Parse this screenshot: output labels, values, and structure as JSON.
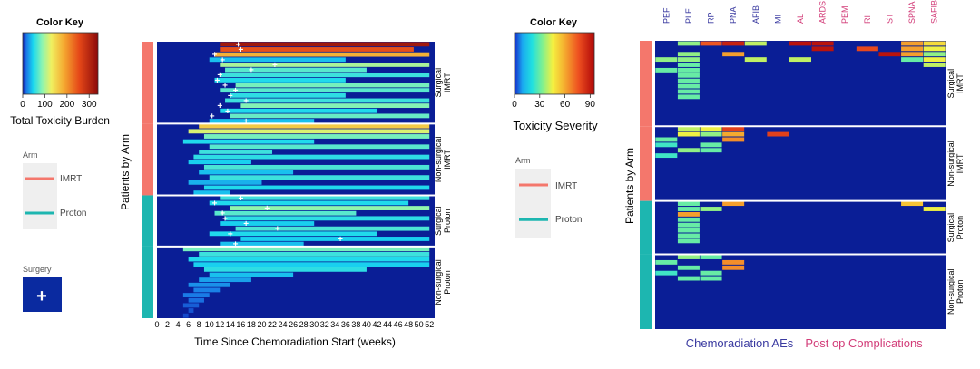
{
  "colors": {
    "imrt": "#f4776c",
    "proton": "#1db6b0",
    "navy": "#0a1e96",
    "surgery_box": "#0a2aa0",
    "aes_label": "#3a3aa0",
    "postop_label": "#d23c78",
    "legend_bg": "#efefef"
  },
  "left_panel": {
    "color_key": {
      "title": "Color Key",
      "label": "Total Toxicity Burden",
      "ticks": [
        "0",
        "100",
        "200",
        "300"
      ],
      "tick_values": [
        0,
        100,
        200,
        300
      ],
      "range": [
        0,
        340
      ]
    },
    "arm_legend": {
      "title": "Arm",
      "items": [
        "IMRT",
        "Proton"
      ]
    },
    "surgery_legend": {
      "title": "Surgery",
      "symbol": "+"
    },
    "y_axis_label": "Patients by Arm",
    "x_axis_label": "Time Since Chemoradiation Start (weeks)"
  },
  "right_panel": {
    "color_key": {
      "title": "Color Key",
      "label": "Toxicity Severity",
      "ticks": [
        "0",
        "30",
        "60",
        "90"
      ],
      "tick_values": [
        0,
        30,
        60,
        90
      ],
      "range": [
        0,
        95
      ]
    },
    "arm_legend": {
      "title": "Arm",
      "items": [
        "IMRT",
        "Proton"
      ]
    },
    "y_axis_label": "Patients by Arm",
    "aes_group_label": "Chemoradiation AEs",
    "postop_group_label": "Post op Complications"
  },
  "chart_data": [
    {
      "type": "heatmap",
      "title": "",
      "xlabel": "Time Since Chemoradiation Start (weeks)",
      "ylabel": "Patients by Arm",
      "x_ticks": [
        0,
        2,
        4,
        6,
        8,
        10,
        12,
        14,
        16,
        18,
        20,
        22,
        24,
        26,
        28,
        30,
        32,
        34,
        36,
        38,
        40,
        42,
        44,
        46,
        48,
        50,
        52
      ],
      "xlim": [
        0,
        53
      ],
      "value_label": "Total Toxicity Burden",
      "groups": [
        {
          "label": "Surgical IMRT",
          "line1": "Surgical",
          "line2": "IMRT",
          "arm": "IMRT",
          "size": 16,
          "rows": [
            {
              "start": 12,
              "end": 52,
              "v": 320
            },
            {
              "start": 12,
              "end": 49,
              "v": 250
            },
            {
              "start": 11,
              "end": 52,
              "v": 180
            },
            {
              "start": 10,
              "end": 36,
              "v": 40
            },
            {
              "start": 12,
              "end": 52,
              "v": 100
            },
            {
              "start": 13,
              "end": 40,
              "v": 70
            },
            {
              "start": 12,
              "end": 52,
              "v": 60
            },
            {
              "start": 11,
              "end": 36,
              "v": 50
            },
            {
              "start": 15,
              "end": 52,
              "v": 80
            },
            {
              "start": 12,
              "end": 52,
              "v": 70
            },
            {
              "start": 14,
              "end": 36,
              "v": 55
            },
            {
              "start": 13,
              "end": 52,
              "v": 60
            },
            {
              "start": 16,
              "end": 52,
              "v": 85
            },
            {
              "start": 12,
              "end": 42,
              "v": 50
            },
            {
              "start": 14,
              "end": 52,
              "v": 75
            },
            {
              "start": 10,
              "end": 30,
              "v": 40
            }
          ],
          "surgery": [
            {
              "row": 0,
              "week": 15.5
            },
            {
              "row": 1,
              "week": 16
            },
            {
              "row": 2,
              "week": 11
            },
            {
              "row": 3,
              "week": 12.5
            },
            {
              "row": 4,
              "week": 22.5
            },
            {
              "row": 5,
              "week": 18
            },
            {
              "row": 6,
              "week": 12
            },
            {
              "row": 7,
              "week": 11.5
            },
            {
              "row": 8,
              "week": 13
            },
            {
              "row": 9,
              "week": 15
            },
            {
              "row": 10,
              "week": 14
            },
            {
              "row": 11,
              "week": 17
            },
            {
              "row": 12,
              "week": 12
            },
            {
              "row": 13,
              "week": 13.5
            },
            {
              "row": 14,
              "week": 10.5
            },
            {
              "row": 15,
              "week": 17
            }
          ]
        },
        {
          "label": "Non-surgical IMRT",
          "line1": "Non-surgical",
          "line2": "IMRT",
          "arm": "IMRT",
          "size": 14,
          "rows": [
            {
              "start": 8,
              "end": 52,
              "v": 160
            },
            {
              "start": 6,
              "end": 52,
              "v": 120
            },
            {
              "start": 9,
              "end": 52,
              "v": 80
            },
            {
              "start": 5,
              "end": 30,
              "v": 50
            },
            {
              "start": 10,
              "end": 52,
              "v": 70
            },
            {
              "start": 8,
              "end": 22,
              "v": 60
            },
            {
              "start": 7,
              "end": 52,
              "v": 55
            },
            {
              "start": 6,
              "end": 18,
              "v": 45
            },
            {
              "start": 9,
              "end": 52,
              "v": 65
            },
            {
              "start": 8,
              "end": 26,
              "v": 40
            },
            {
              "start": 10,
              "end": 52,
              "v": 60
            },
            {
              "start": 6,
              "end": 20,
              "v": 35
            },
            {
              "start": 9,
              "end": 52,
              "v": 50
            },
            {
              "start": 7,
              "end": 14,
              "v": 40
            }
          ],
          "surgery": []
        },
        {
          "label": "Surgical Proton",
          "line1": "Surgical",
          "line2": "Proton",
          "arm": "Proton",
          "size": 10,
          "rows": [
            {
              "start": 12,
              "end": 52,
              "v": 60
            },
            {
              "start": 10,
              "end": 48,
              "v": 50
            },
            {
              "start": 14,
              "end": 52,
              "v": 90
            },
            {
              "start": 11,
              "end": 38,
              "v": 70
            },
            {
              "start": 13,
              "end": 52,
              "v": 55
            },
            {
              "start": 12,
              "end": 30,
              "v": 45
            },
            {
              "start": 15,
              "end": 52,
              "v": 65
            },
            {
              "start": 10,
              "end": 42,
              "v": 50
            },
            {
              "start": 16,
              "end": 52,
              "v": 45
            },
            {
              "start": 12,
              "end": 28,
              "v": 40
            }
          ],
          "surgery": [
            {
              "row": 0,
              "week": 16
            },
            {
              "row": 1,
              "week": 11
            },
            {
              "row": 2,
              "week": 21
            },
            {
              "row": 3,
              "week": 12.5
            },
            {
              "row": 4,
              "week": 13
            },
            {
              "row": 5,
              "week": 17
            },
            {
              "row": 6,
              "week": 23
            },
            {
              "row": 7,
              "week": 14
            },
            {
              "row": 8,
              "week": 35
            },
            {
              "row": 9,
              "week": 15
            }
          ]
        },
        {
          "label": "Non-surgical Proton",
          "line1": "Non-surgical",
          "line2": "Proton",
          "arm": "Proton",
          "size": 14,
          "rows": [
            {
              "start": 5,
              "end": 52,
              "v": 80
            },
            {
              "start": 8,
              "end": 52,
              "v": 60
            },
            {
              "start": 6,
              "end": 52,
              "v": 50
            },
            {
              "start": 7,
              "end": 52,
              "v": 45
            },
            {
              "start": 9,
              "end": 40,
              "v": 55
            },
            {
              "start": 10,
              "end": 26,
              "v": 40
            },
            {
              "start": 8,
              "end": 18,
              "v": 30
            },
            {
              "start": 6,
              "end": 14,
              "v": 25
            },
            {
              "start": 7,
              "end": 12,
              "v": 20
            },
            {
              "start": 5,
              "end": 10,
              "v": 18
            },
            {
              "start": 6,
              "end": 9,
              "v": 15
            },
            {
              "start": 5,
              "end": 8,
              "v": 12
            },
            {
              "start": 6,
              "end": 7,
              "v": 10
            },
            {
              "start": 5,
              "end": 6,
              "v": 8
            }
          ],
          "surgery": []
        }
      ]
    },
    {
      "type": "heatmap",
      "title": "",
      "ylabel": "Patients by Arm",
      "value_label": "Toxicity Severity",
      "columns": [
        "PEF",
        "PLE",
        "RP",
        "PNA",
        "AFIB",
        "MI",
        "AL",
        "ARDS",
        "PEM",
        "RI",
        "ST",
        "SPNA",
        "SAFIB"
      ],
      "column_groups": [
        "AE",
        "AE",
        "AE",
        "AE",
        "AE",
        "AE",
        "PO",
        "PO",
        "PO",
        "PO",
        "PO",
        "PO",
        "PO"
      ],
      "groups": [
        {
          "label": "Surgical IMRT",
          "line1": "Surgical",
          "line2": "IMRT",
          "arm": "IMRT",
          "size": 16,
          "cells": [
            {
              "r": 0,
              "c": 1,
              "v": 35
            },
            {
              "r": 0,
              "c": 2,
              "v": 75
            },
            {
              "r": 0,
              "c": 3,
              "v": 88
            },
            {
              "r": 0,
              "c": 4,
              "v": 40
            },
            {
              "r": 0,
              "c": 6,
              "v": 92
            },
            {
              "r": 0,
              "c": 7,
              "v": 92
            },
            {
              "r": 0,
              "c": 11,
              "v": 62
            },
            {
              "r": 0,
              "c": 12,
              "v": 50
            },
            {
              "r": 1,
              "c": 7,
              "v": 92
            },
            {
              "r": 1,
              "c": 9,
              "v": 78
            },
            {
              "r": 1,
              "c": 11,
              "v": 62
            },
            {
              "r": 1,
              "c": 12,
              "v": 45
            },
            {
              "r": 2,
              "c": 1,
              "v": 35
            },
            {
              "r": 2,
              "c": 3,
              "v": 62
            },
            {
              "r": 2,
              "c": 10,
              "v": 92
            },
            {
              "r": 2,
              "c": 11,
              "v": 62
            },
            {
              "r": 2,
              "c": 12,
              "v": 35
            },
            {
              "r": 3,
              "c": 0,
              "v": 35
            },
            {
              "r": 3,
              "c": 1,
              "v": 35
            },
            {
              "r": 3,
              "c": 4,
              "v": 40
            },
            {
              "r": 3,
              "c": 6,
              "v": 40
            },
            {
              "r": 3,
              "c": 11,
              "v": 30
            },
            {
              "r": 3,
              "c": 12,
              "v": 45
            },
            {
              "r": 4,
              "c": 1,
              "v": 30
            },
            {
              "r": 4,
              "c": 12,
              "v": 40
            },
            {
              "r": 5,
              "c": 0,
              "v": 30
            },
            {
              "r": 5,
              "c": 1,
              "v": 30
            },
            {
              "r": 6,
              "c": 1,
              "v": 30
            },
            {
              "r": 7,
              "c": 1,
              "v": 30
            },
            {
              "r": 8,
              "c": 1,
              "v": 30
            },
            {
              "r": 9,
              "c": 1,
              "v": 30
            },
            {
              "r": 10,
              "c": 1,
              "v": 30
            }
          ]
        },
        {
          "label": "Non-surgical IMRT",
          "line1": "Non-surgical",
          "line2": "IMRT",
          "arm": "IMRT",
          "size": 14,
          "cells": [
            {
              "r": 0,
              "c": 1,
              "v": 40
            },
            {
              "r": 0,
              "c": 2,
              "v": 45
            },
            {
              "r": 0,
              "c": 3,
              "v": 80
            },
            {
              "r": 1,
              "c": 1,
              "v": 45
            },
            {
              "r": 1,
              "c": 2,
              "v": 35
            },
            {
              "r": 1,
              "c": 3,
              "v": 60
            },
            {
              "r": 1,
              "c": 5,
              "v": 80
            },
            {
              "r": 2,
              "c": 0,
              "v": 30
            },
            {
              "r": 2,
              "c": 3,
              "v": 65
            },
            {
              "r": 3,
              "c": 0,
              "v": 25
            },
            {
              "r": 3,
              "c": 2,
              "v": 30
            },
            {
              "r": 4,
              "c": 1,
              "v": 35
            },
            {
              "r": 4,
              "c": 2,
              "v": 30
            },
            {
              "r": 5,
              "c": 0,
              "v": 25
            }
          ]
        },
        {
          "label": "Surgical Proton",
          "line1": "Surgical",
          "line2": "Proton",
          "arm": "Proton",
          "size": 10,
          "cells": [
            {
              "r": 0,
              "c": 1,
              "v": 30
            },
            {
              "r": 0,
              "c": 3,
              "v": 62
            },
            {
              "r": 0,
              "c": 11,
              "v": 55
            },
            {
              "r": 1,
              "c": 1,
              "v": 30
            },
            {
              "r": 1,
              "c": 2,
              "v": 35
            },
            {
              "r": 1,
              "c": 12,
              "v": 45
            },
            {
              "r": 2,
              "c": 1,
              "v": 62
            },
            {
              "r": 3,
              "c": 1,
              "v": 30
            },
            {
              "r": 4,
              "c": 1,
              "v": 30
            },
            {
              "r": 5,
              "c": 1,
              "v": 30
            },
            {
              "r": 6,
              "c": 1,
              "v": 30
            },
            {
              "r": 7,
              "c": 1,
              "v": 30
            }
          ]
        },
        {
          "label": "Non-surgical Proton",
          "line1": "Non-surgical",
          "line2": "Proton",
          "arm": "Proton",
          "size": 14,
          "cells": [
            {
              "r": 0,
              "c": 1,
              "v": 35
            },
            {
              "r": 0,
              "c": 2,
              "v": 30
            },
            {
              "r": 1,
              "c": 0,
              "v": 30
            },
            {
              "r": 1,
              "c": 3,
              "v": 65
            },
            {
              "r": 2,
              "c": 1,
              "v": 30
            },
            {
              "r": 2,
              "c": 3,
              "v": 65
            },
            {
              "r": 3,
              "c": 0,
              "v": 25
            },
            {
              "r": 3,
              "c": 2,
              "v": 30
            },
            {
              "r": 4,
              "c": 1,
              "v": 30
            },
            {
              "r": 4,
              "c": 2,
              "v": 30
            }
          ]
        }
      ]
    }
  ]
}
